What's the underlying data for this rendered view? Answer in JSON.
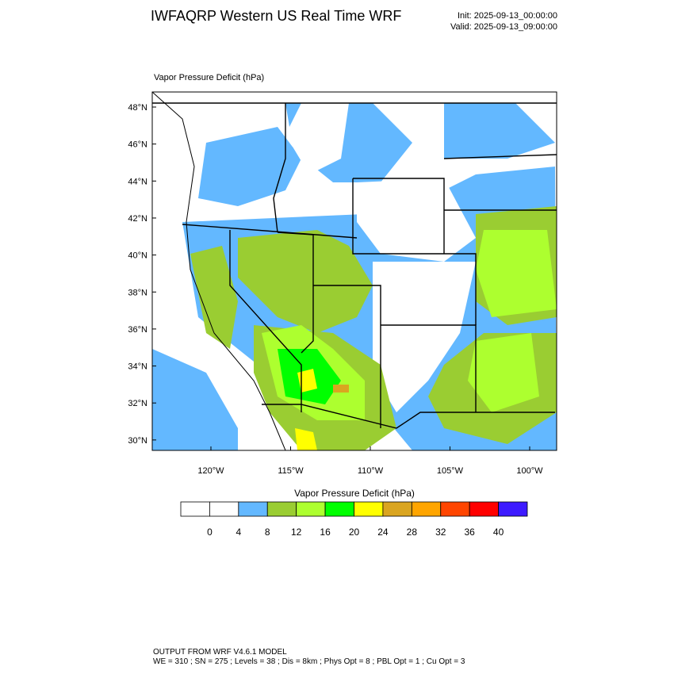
{
  "header": {
    "title": "IWFAQRP Western US Real Time WRF",
    "init": "Init: 2025-09-13_00:00:00",
    "valid": "Valid: 2025-09-13_09:00:00"
  },
  "map": {
    "title": "Vapor Pressure Deficit   (hPa)",
    "lat_labels": [
      "48°N",
      "46°N",
      "44°N",
      "42°N",
      "40°N",
      "38°N",
      "36°N",
      "34°N",
      "32°N",
      "30°N"
    ],
    "lon_labels": [
      "120°W",
      "115°W",
      "110°W",
      "105°W",
      "100°W"
    ]
  },
  "colorbar": {
    "title": "Vapor Pressure Deficit  (hPa)",
    "colors": [
      "#ffffff",
      "#ffffff",
      "#63b8ff",
      "#9acd32",
      "#adff2f",
      "#00ff00",
      "#ffff00",
      "#daa520",
      "#ffa500",
      "#ff4500",
      "#ff0000",
      "#3d1aff"
    ],
    "labels": [
      "0",
      "4",
      "8",
      "12",
      "16",
      "20",
      "24",
      "28",
      "32",
      "36",
      "40"
    ]
  },
  "footer": {
    "line1": "OUTPUT FROM WRF V4.6.1 MODEL",
    "line2": "WE = 310 ; SN = 275 ; Levels = 38 ; Dis = 8km ; Phys Opt = 8 ; PBL Opt = 1 ; Cu Opt = 3"
  }
}
